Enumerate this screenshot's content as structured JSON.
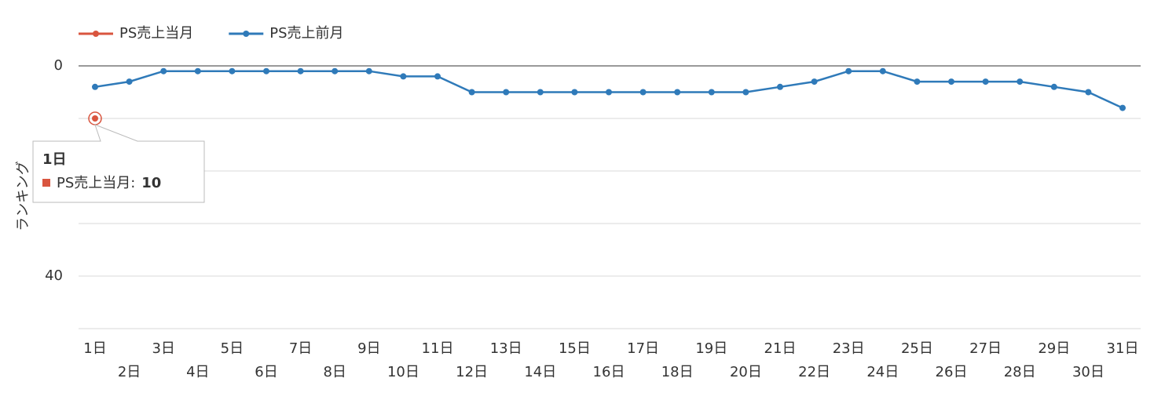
{
  "chart_data": {
    "type": "line",
    "y_axis_label": "ランキング",
    "categories": [
      "1日",
      "2日",
      "3日",
      "4日",
      "5日",
      "6日",
      "7日",
      "8日",
      "9日",
      "10日",
      "11日",
      "12日",
      "13日",
      "14日",
      "15日",
      "16日",
      "17日",
      "18日",
      "19日",
      "20日",
      "21日",
      "22日",
      "23日",
      "24日",
      "25日",
      "26日",
      "27日",
      "28日",
      "29日",
      "30日",
      "31日"
    ],
    "series": [
      {
        "name": "PS売上当月",
        "color": "#d9553f",
        "values": [
          10,
          null,
          null,
          null,
          null,
          null,
          null,
          null,
          null,
          null,
          null,
          null,
          null,
          null,
          null,
          null,
          null,
          null,
          null,
          null,
          null,
          null,
          null,
          null,
          null,
          null,
          null,
          null,
          null,
          null,
          null
        ]
      },
      {
        "name": "PS売上前月",
        "color": "#2f7ab9",
        "values": [
          4,
          3,
          1,
          1,
          1,
          1,
          1,
          1,
          1,
          2,
          2,
          5,
          5,
          5,
          5,
          5,
          5,
          5,
          5,
          5,
          4,
          3,
          1,
          1,
          3,
          3,
          3,
          3,
          4,
          5,
          8
        ]
      }
    ],
    "ylim": [
      0,
      50
    ],
    "y_reversed": true,
    "yticks": [
      0,
      40
    ],
    "minor_yticks": [
      10,
      20,
      30,
      50
    ],
    "grid": true,
    "legend": "top-left"
  }
}
